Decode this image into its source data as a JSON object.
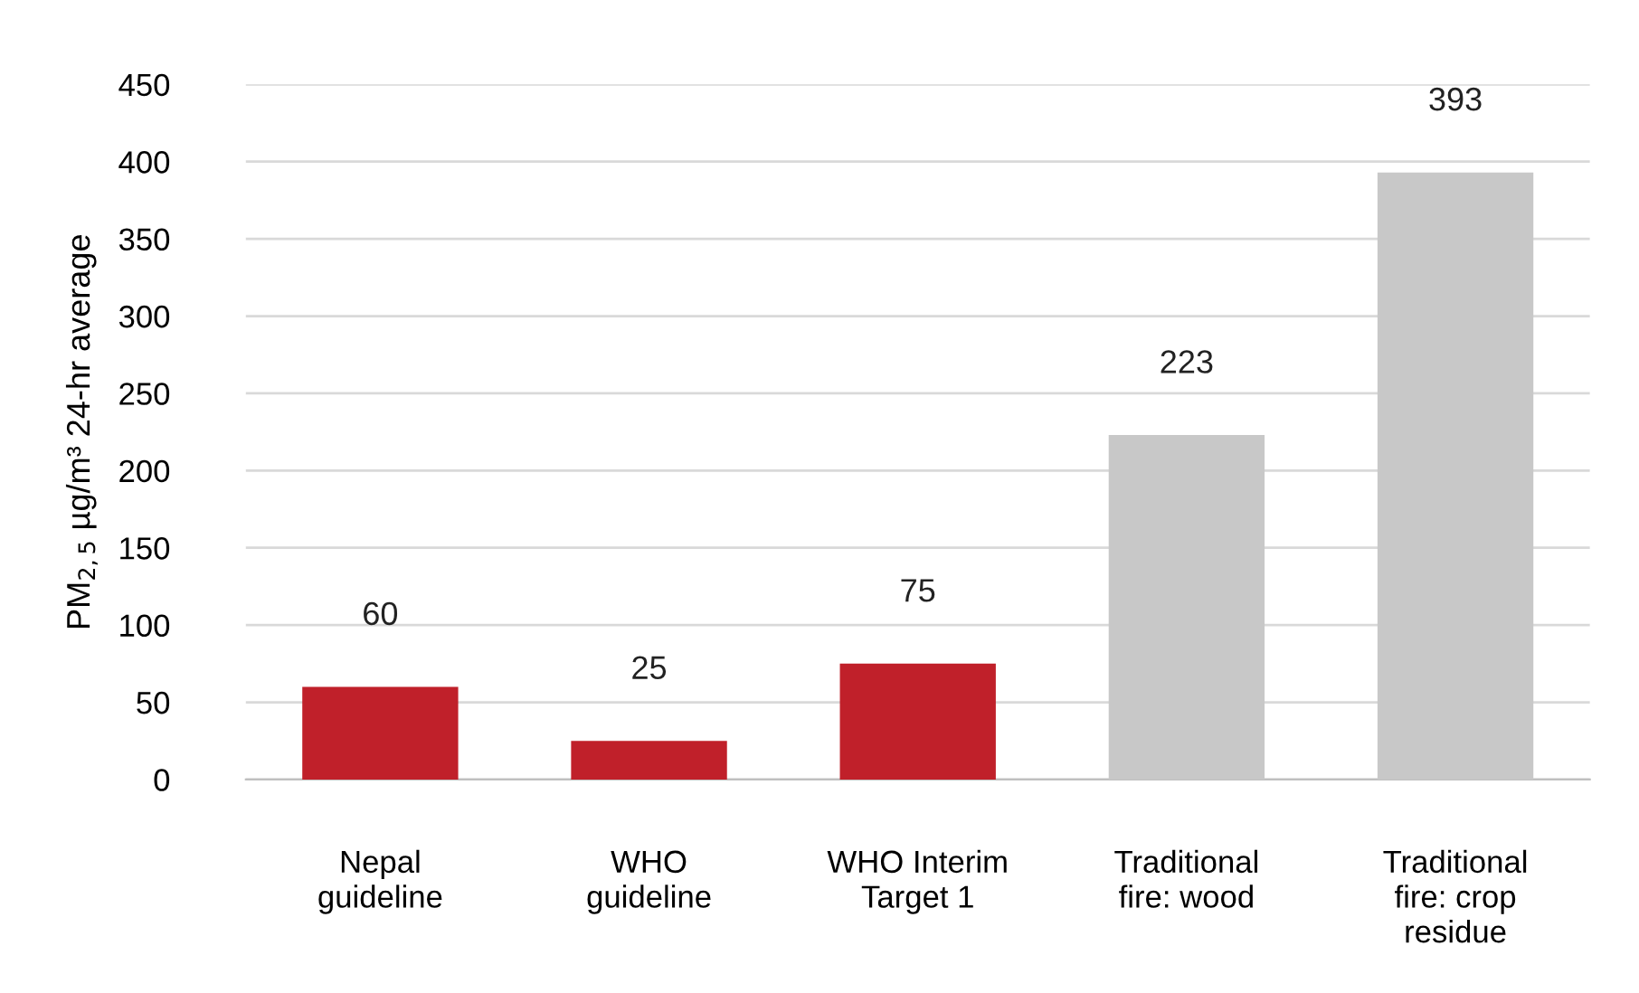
{
  "chart_data": {
    "type": "bar",
    "ylabel": "PM$_{2,5}$ µg/m³ 24-hr average",
    "categories": [
      "Nepal\nguideline",
      "WHO\nguideline",
      "WHO Interim\nTarget 1",
      "Traditional\nfire: wood",
      "Traditional\nfire: crop\nresidue"
    ],
    "values": [
      60,
      25,
      75,
      223,
      393
    ],
    "colors": [
      "#c0202a",
      "#c0202a",
      "#c0202a",
      "#c8c8c8",
      "#c8c8c8"
    ],
    "ylim": [
      0,
      450
    ],
    "yticks": [
      0,
      50,
      100,
      150,
      200,
      250,
      300,
      350,
      400,
      450
    ],
    "grid": "y",
    "data_labels": true
  }
}
